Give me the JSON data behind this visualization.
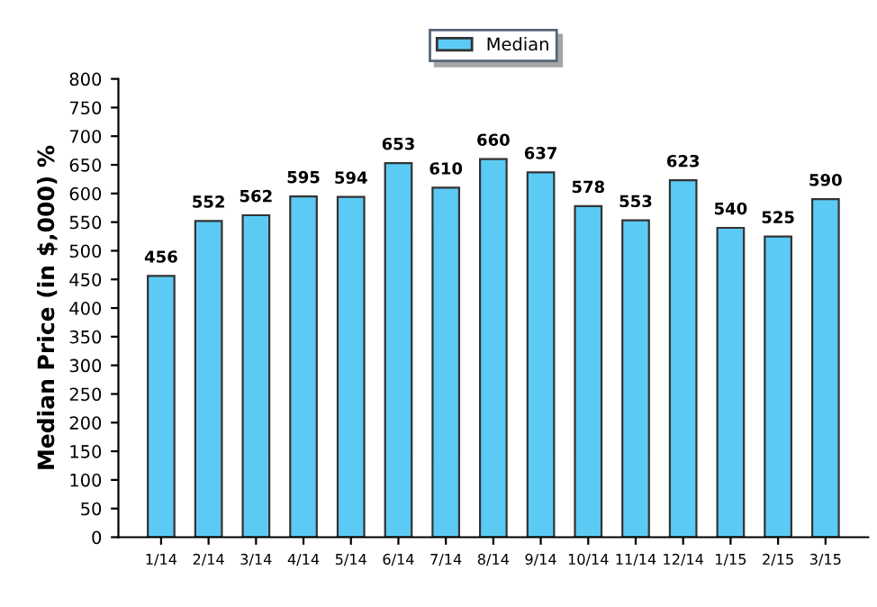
{
  "chart_data": {
    "type": "bar",
    "ylabel": "Median Price (in $,000) %",
    "categories": [
      "1/14",
      "2/14",
      "3/14",
      "4/14",
      "5/14",
      "6/14",
      "7/14",
      "8/14",
      "9/14",
      "10/14",
      "11/14",
      "12/14",
      "1/15",
      "2/15",
      "3/15"
    ],
    "series": [
      {
        "name": "Median",
        "color": "#5bcbf5",
        "values": [
          456,
          552,
          562,
          595,
          594,
          653,
          610,
          660,
          637,
          578,
          553,
          623,
          540,
          525,
          590
        ]
      }
    ],
    "ylim": [
      0,
      800
    ],
    "yticks": [
      0,
      50,
      100,
      150,
      200,
      250,
      300,
      350,
      400,
      450,
      500,
      550,
      600,
      650,
      700,
      750,
      800
    ],
    "data_labels": true,
    "grid": false,
    "legend": "top"
  }
}
